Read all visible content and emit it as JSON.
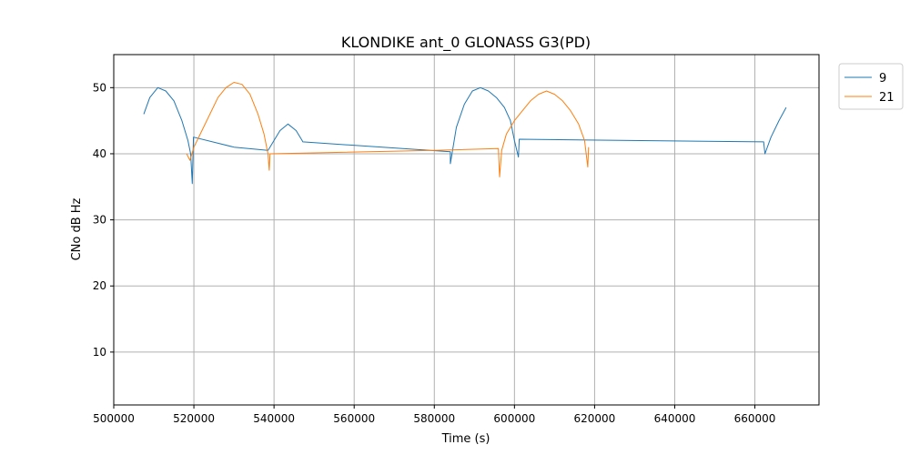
{
  "chart_data": {
    "type": "line",
    "title": "KLONDIKE ant_0 GLONASS G3(PD)",
    "xlabel": "Time (s)",
    "ylabel": "CNo dB Hz",
    "xlim": [
      500000,
      676000
    ],
    "ylim": [
      2,
      55
    ],
    "xticks": [
      500000,
      520000,
      540000,
      560000,
      580000,
      600000,
      620000,
      640000,
      660000
    ],
    "yticks": [
      10,
      20,
      30,
      40,
      50
    ],
    "grid": true,
    "legend_position": "outside-top-right",
    "series": [
      {
        "name": "9",
        "color": "#1f77b4",
        "x": [
          507500,
          509000,
          511000,
          513000,
          515000,
          517000,
          518500,
          519200,
          519600,
          519900,
          520000,
          530000,
          538500,
          539000,
          540000,
          541500,
          543500,
          545500,
          547000,
          547200,
          584000,
          584000,
          585500,
          587500,
          589500,
          591500,
          593500,
          595500,
          597500,
          599000,
          600000,
          601000,
          601200,
          662200,
          662500,
          664000,
          666000,
          667800
        ],
        "y": [
          46,
          48.5,
          50,
          49.5,
          48,
          45,
          42,
          40,
          35.5,
          42.5,
          42.5,
          41,
          40.5,
          41,
          42,
          43.5,
          44.5,
          43.5,
          42,
          41.8,
          40.3,
          38.5,
          44,
          47.5,
          49.5,
          50,
          49.5,
          48.5,
          47,
          45,
          42,
          39.5,
          42.2,
          41.8,
          40,
          42.5,
          45,
          47
        ]
      },
      {
        "name": "21",
        "color": "#ff7f0e",
        "x": [
          518200,
          519000,
          520000,
          522000,
          524000,
          526000,
          528000,
          530000,
          532000,
          534000,
          536000,
          537500,
          538500,
          538800,
          539000,
          580000,
          596000,
          596300,
          596800,
          598000,
          600000,
          602000,
          604000,
          606000,
          608000,
          610000,
          612000,
          614000,
          616000,
          617500,
          618300,
          618500
        ],
        "y": [
          40,
          39,
          41,
          43.5,
          46,
          48.5,
          50,
          50.8,
          50.5,
          49,
          46,
          43,
          40,
          37.5,
          40,
          40.5,
          40.8,
          36.5,
          40.5,
          43,
          45,
          46.5,
          48,
          49,
          49.5,
          49,
          48,
          46.5,
          44.5,
          42,
          38,
          41
        ]
      }
    ]
  }
}
